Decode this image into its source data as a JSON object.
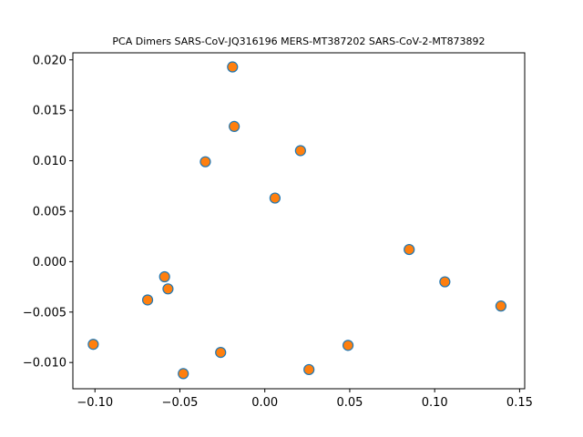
{
  "chart_data": {
    "type": "scatter",
    "title": "PCA Dimers SARS-CoV-JQ316196 MERS-MT387202 SARS-CoV-2-MT873892",
    "xlabel": "",
    "ylabel": "",
    "xlim": [
      -0.113,
      0.153
    ],
    "ylim": [
      -0.0126,
      0.0207
    ],
    "xticks": [
      -0.1,
      -0.05,
      0.0,
      0.05,
      0.1,
      0.15
    ],
    "xtick_labels": [
      "−0.10",
      "−0.05",
      "0.00",
      "0.05",
      "0.10",
      "0.15"
    ],
    "yticks": [
      -0.01,
      -0.005,
      0.0,
      0.005,
      0.01,
      0.015,
      0.02
    ],
    "ytick_labels": [
      "−0.010",
      "−0.005",
      "0.000",
      "0.005",
      "0.010",
      "0.015",
      "0.020"
    ],
    "grid": false,
    "marker_face_color": "#ff7f0e",
    "marker_edge_color": "#1f77b4",
    "series": [
      {
        "name": "dimers",
        "points": [
          {
            "x": -0.019,
            "y": 0.0193
          },
          {
            "x": -0.018,
            "y": 0.0134
          },
          {
            "x": 0.021,
            "y": 0.011
          },
          {
            "x": -0.035,
            "y": 0.0099
          },
          {
            "x": 0.006,
            "y": 0.0063
          },
          {
            "x": 0.085,
            "y": 0.0012
          },
          {
            "x": -0.059,
            "y": -0.0015
          },
          {
            "x": 0.106,
            "y": -0.002
          },
          {
            "x": -0.057,
            "y": -0.0027
          },
          {
            "x": -0.069,
            "y": -0.0038
          },
          {
            "x": 0.139,
            "y": -0.0044
          },
          {
            "x": -0.101,
            "y": -0.0082
          },
          {
            "x": 0.049,
            "y": -0.0083
          },
          {
            "x": -0.026,
            "y": -0.009
          },
          {
            "x": 0.026,
            "y": -0.0107
          },
          {
            "x": -0.048,
            "y": -0.0111
          }
        ]
      }
    ]
  }
}
